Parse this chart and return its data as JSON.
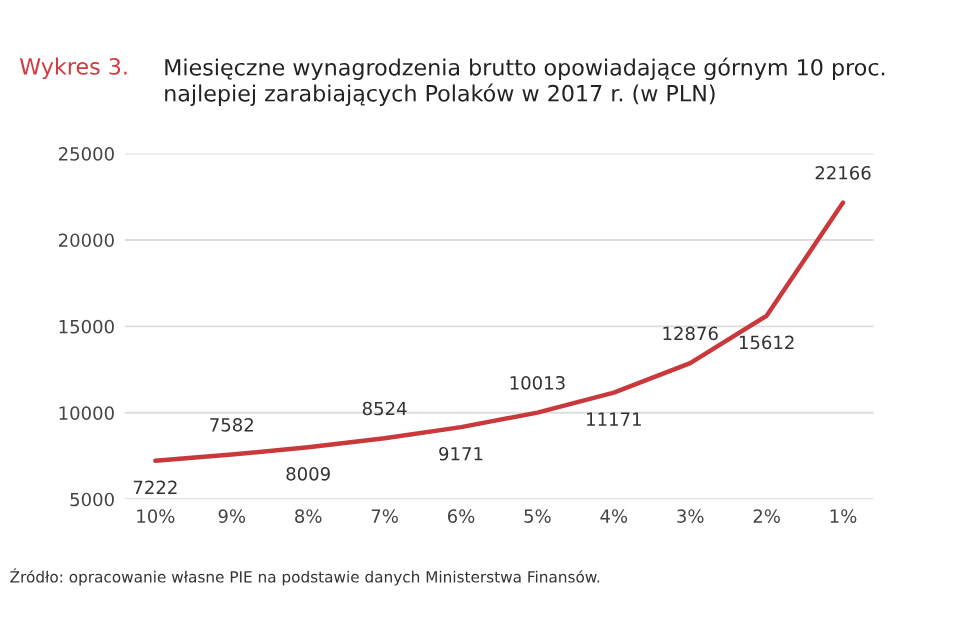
{
  "chart_data": {
    "type": "line",
    "title": "Wykres 3.",
    "subtitle": "Miesięczne wynagrodzenia brutto opowiadające górnym 10 proc. najlepiej zarabiających Polaków w 2017 r. (w PLN)",
    "categories": [
      "10%",
      "9%",
      "8%",
      "7%",
      "6%",
      "5%",
      "4%",
      "3%",
      "2%",
      "1%"
    ],
    "series": [
      {
        "color": "#c9393c",
        "values": [
          7222,
          7582,
          8009,
          8524,
          9171,
          10013,
          11171,
          12876,
          15612,
          22166
        ]
      }
    ],
    "ylim": [
      5000,
      25000
    ],
    "yticks": [
      5000,
      10000,
      15000,
      20000,
      25000
    ],
    "grid": "y",
    "data_labels": true,
    "marker": "none",
    "line_style": "solid",
    "annotations": [
      "Źródło: opracowanie własne PIE na podstawie danych Ministerstwa Finansów."
    ]
  }
}
